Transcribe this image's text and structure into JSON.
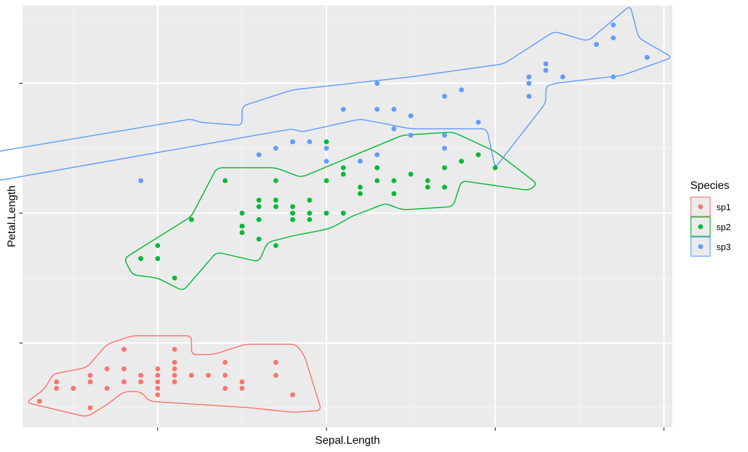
{
  "chart_data": {
    "type": "scatter",
    "title": "",
    "xlabel": "Sepal.Length",
    "ylabel": "Petal.Length",
    "xlim": [
      4.2,
      8.05
    ],
    "ylim": [
      0.7,
      7.2
    ],
    "x_ticks": [
      5.0,
      6.0,
      7.0,
      8.0
    ],
    "y_ticks": [
      2.0,
      4.0,
      6.0
    ],
    "x_tick_labels_visible": false,
    "y_tick_labels_visible": false,
    "grid": true,
    "legend": {
      "title": "Species",
      "placement": "right",
      "entries": [
        "sp1",
        "sp2",
        "sp3"
      ]
    },
    "colors": {
      "sp1": "#F8766D",
      "sp2": "#00BA38",
      "sp3": "#619CFF"
    },
    "hull_type": "smoothed convex hull",
    "series": [
      {
        "name": "sp1",
        "points": [
          [
            4.3,
            1.1
          ],
          [
            4.4,
            1.3
          ],
          [
            4.4,
            1.4
          ],
          [
            4.5,
            1.3
          ],
          [
            4.6,
            1.0
          ],
          [
            4.6,
            1.4
          ],
          [
            4.6,
            1.5
          ],
          [
            4.7,
            1.3
          ],
          [
            4.7,
            1.6
          ],
          [
            4.8,
            1.4
          ],
          [
            4.8,
            1.6
          ],
          [
            4.8,
            1.9
          ],
          [
            4.9,
            1.4
          ],
          [
            4.9,
            1.5
          ],
          [
            5.0,
            1.2
          ],
          [
            5.0,
            1.3
          ],
          [
            5.0,
            1.4
          ],
          [
            5.0,
            1.5
          ],
          [
            5.0,
            1.6
          ],
          [
            5.1,
            1.4
          ],
          [
            5.1,
            1.5
          ],
          [
            5.1,
            1.6
          ],
          [
            5.1,
            1.7
          ],
          [
            5.1,
            1.9
          ],
          [
            5.2,
            1.5
          ],
          [
            5.3,
            1.5
          ],
          [
            5.4,
            1.3
          ],
          [
            5.4,
            1.5
          ],
          [
            5.4,
            1.7
          ],
          [
            5.5,
            1.3
          ],
          [
            5.5,
            1.4
          ],
          [
            5.7,
            1.5
          ],
          [
            5.7,
            1.7
          ],
          [
            5.8,
            1.2
          ]
        ],
        "hull": [
          [
            4.22,
            1.08
          ],
          [
            4.33,
            1.29
          ],
          [
            4.38,
            1.52
          ],
          [
            4.58,
            1.62
          ],
          [
            4.7,
            1.98
          ],
          [
            4.85,
            2.11
          ],
          [
            5.2,
            2.11
          ],
          [
            5.2,
            1.82
          ],
          [
            5.33,
            1.82
          ],
          [
            5.52,
            1.98
          ],
          [
            5.82,
            1.98
          ],
          [
            5.87,
            1.8
          ],
          [
            5.97,
            0.96
          ],
          [
            5.8,
            0.93
          ],
          [
            5.55,
            1.0
          ],
          [
            4.95,
            1.1
          ],
          [
            4.9,
            1.25
          ],
          [
            4.8,
            1.25
          ],
          [
            4.7,
            1.05
          ],
          [
            4.58,
            0.86
          ],
          [
            4.22,
            1.08
          ]
        ]
      },
      {
        "name": "sp2",
        "points": [
          [
            4.9,
            3.3
          ],
          [
            5.0,
            3.3
          ],
          [
            5.0,
            3.5
          ],
          [
            5.1,
            3.0
          ],
          [
            5.2,
            3.9
          ],
          [
            5.4,
            4.5
          ],
          [
            5.5,
            3.7
          ],
          [
            5.5,
            3.8
          ],
          [
            5.5,
            4.0
          ],
          [
            5.6,
            3.6
          ],
          [
            5.6,
            3.9
          ],
          [
            5.6,
            4.1
          ],
          [
            5.6,
            4.2
          ],
          [
            5.7,
            3.5
          ],
          [
            5.7,
            4.1
          ],
          [
            5.7,
            4.2
          ],
          [
            5.7,
            4.5
          ],
          [
            5.8,
            3.9
          ],
          [
            5.8,
            4.0
          ],
          [
            5.8,
            4.1
          ],
          [
            5.9,
            3.9
          ],
          [
            5.9,
            4.0
          ],
          [
            5.9,
            4.2
          ],
          [
            6.0,
            4.0
          ],
          [
            6.0,
            4.5
          ],
          [
            6.0,
            5.1
          ],
          [
            6.1,
            4.0
          ],
          [
            6.1,
            4.6
          ],
          [
            6.1,
            4.7
          ],
          [
            6.2,
            4.3
          ],
          [
            6.2,
            4.4
          ],
          [
            6.3,
            4.5
          ],
          [
            6.3,
            4.7
          ],
          [
            6.4,
            4.3
          ],
          [
            6.4,
            4.5
          ],
          [
            6.5,
            4.6
          ],
          [
            6.6,
            4.4
          ],
          [
            6.6,
            4.5
          ],
          [
            6.7,
            4.4
          ],
          [
            6.7,
            4.7
          ],
          [
            6.8,
            4.8
          ],
          [
            6.9,
            4.9
          ],
          [
            7.0,
            4.7
          ]
        ],
        "hull": [
          [
            4.8,
            3.3
          ],
          [
            5.2,
            3.95
          ],
          [
            5.35,
            4.7
          ],
          [
            5.7,
            4.7
          ],
          [
            5.85,
            4.55
          ],
          [
            6.45,
            5.2
          ],
          [
            6.75,
            5.25
          ],
          [
            7.0,
            4.95
          ],
          [
            7.25,
            4.45
          ],
          [
            7.2,
            4.35
          ],
          [
            6.8,
            4.5
          ],
          [
            6.75,
            4.1
          ],
          [
            6.45,
            4.05
          ],
          [
            6.35,
            4.15
          ],
          [
            6.3,
            4.1
          ],
          [
            6.2,
            4.0
          ],
          [
            6.15,
            3.95
          ],
          [
            6.05,
            3.8
          ],
          [
            6.0,
            3.75
          ],
          [
            5.8,
            3.65
          ],
          [
            5.65,
            3.55
          ],
          [
            5.6,
            3.25
          ],
          [
            5.35,
            3.4
          ],
          [
            5.15,
            2.8
          ],
          [
            5.0,
            3.0
          ],
          [
            4.85,
            3.05
          ],
          [
            4.8,
            3.3
          ]
        ]
      },
      {
        "name": "sp3",
        "points": [
          [
            4.9,
            4.5
          ],
          [
            5.6,
            4.9
          ],
          [
            5.7,
            5.0
          ],
          [
            5.8,
            5.1
          ],
          [
            5.8,
            5.1
          ],
          [
            5.9,
            5.1
          ],
          [
            6.0,
            4.8
          ],
          [
            6.0,
            5.0
          ],
          [
            6.1,
            5.6
          ],
          [
            6.2,
            4.8
          ],
          [
            6.3,
            4.9
          ],
          [
            6.3,
            5.6
          ],
          [
            6.3,
            6.0
          ],
          [
            6.4,
            5.3
          ],
          [
            6.4,
            5.6
          ],
          [
            6.5,
            5.5
          ],
          [
            6.5,
            5.2
          ],
          [
            6.7,
            5.0
          ],
          [
            6.7,
            5.2
          ],
          [
            6.7,
            5.8
          ],
          [
            6.8,
            5.9
          ],
          [
            6.9,
            5.4
          ],
          [
            7.2,
            6.1
          ],
          [
            7.3,
            6.3
          ],
          [
            7.6,
            6.6
          ],
          [
            7.7,
            6.9
          ],
          [
            7.7,
            6.1
          ],
          [
            7.9,
            6.4
          ],
          [
            7.7,
            6.7
          ],
          [
            7.4,
            6.1
          ],
          [
            7.3,
            6.2
          ],
          [
            7.2,
            6.0
          ],
          [
            7.2,
            5.8
          ]
        ],
        "hull": [
          [
            4.05,
            4.5
          ],
          [
            5.8,
            5.3
          ],
          [
            5.85,
            5.25
          ],
          [
            6.2,
            5.45
          ],
          [
            6.5,
            5.3
          ],
          [
            6.95,
            5.3
          ],
          [
            7.0,
            4.7
          ],
          [
            7.3,
            5.7
          ],
          [
            7.3,
            5.95
          ],
          [
            7.35,
            6.0
          ],
          [
            7.75,
            6.12
          ],
          [
            8.05,
            6.4
          ],
          [
            7.85,
            6.7
          ],
          [
            7.8,
            7.2
          ],
          [
            7.55,
            6.65
          ],
          [
            7.35,
            6.8
          ],
          [
            7.05,
            6.3
          ],
          [
            6.5,
            6.1
          ],
          [
            5.8,
            5.9
          ],
          [
            5.5,
            5.65
          ],
          [
            5.5,
            5.35
          ],
          [
            5.25,
            5.4
          ],
          [
            5.2,
            5.45
          ],
          [
            4.05,
            4.95
          ],
          [
            3.95,
            4.65
          ],
          [
            4.05,
            4.5
          ]
        ]
      }
    ]
  }
}
